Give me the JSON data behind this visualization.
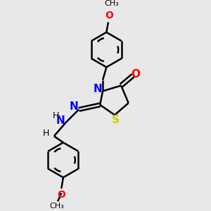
{
  "bg_color": "#e8e8e8",
  "atom_colors": {
    "N": "#0000ff",
    "O": "#ff0000",
    "S": "#cccc00",
    "C": "#000000",
    "H": "#000000"
  },
  "bond_color": "#000000",
  "bond_lw": 1.8,
  "figsize": [
    3.0,
    3.0
  ],
  "dpi": 100,
  "xlim": [
    0.0,
    10.0
  ],
  "ylim": [
    0.0,
    10.0
  ]
}
